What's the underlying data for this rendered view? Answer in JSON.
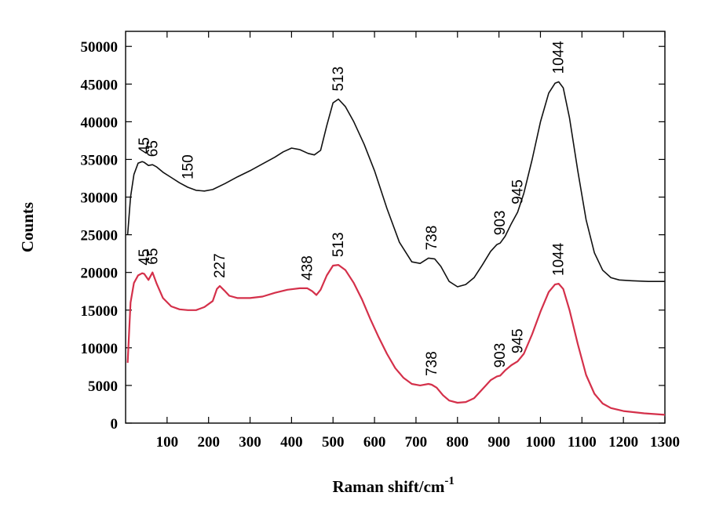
{
  "chart_data": {
    "type": "line",
    "title": "",
    "xlabel": "Raman shift/cm",
    "xlabel_superscript": "-1",
    "ylabel": "Counts",
    "xlim": [
      0,
      1300
    ],
    "ylim": [
      0,
      52000
    ],
    "x_ticks": [
      100,
      200,
      300,
      400,
      500,
      600,
      700,
      800,
      900,
      1000,
      1100,
      1200,
      1300
    ],
    "x_tick_labels": [
      "100",
      "200",
      "300",
      "400",
      "500",
      "600",
      "700",
      "800",
      "900",
      "1000",
      "1100",
      "1200",
      "1300"
    ],
    "y_ticks": [
      0,
      5000,
      10000,
      15000,
      20000,
      25000,
      30000,
      35000,
      40000,
      45000,
      50000
    ],
    "y_tick_labels": [
      "0",
      "5000",
      "10000",
      "15000",
      "20000",
      "25000",
      "30000",
      "35000",
      "40000",
      "45000",
      "50000"
    ],
    "grid": false,
    "legend": "none",
    "series": [
      {
        "color": "#111111",
        "points": [
          [
            5,
            25000
          ],
          [
            12,
            30000
          ],
          [
            20,
            33000
          ],
          [
            30,
            34500
          ],
          [
            40,
            34700
          ],
          [
            45,
            34600
          ],
          [
            55,
            34200
          ],
          [
            65,
            34300
          ],
          [
            75,
            34000
          ],
          [
            90,
            33300
          ],
          [
            110,
            32600
          ],
          [
            130,
            31900
          ],
          [
            150,
            31300
          ],
          [
            170,
            30900
          ],
          [
            190,
            30800
          ],
          [
            210,
            31000
          ],
          [
            240,
            31800
          ],
          [
            270,
            32700
          ],
          [
            300,
            33500
          ],
          [
            330,
            34400
          ],
          [
            360,
            35300
          ],
          [
            380,
            36000
          ],
          [
            400,
            36500
          ],
          [
            420,
            36300
          ],
          [
            440,
            35800
          ],
          [
            455,
            35600
          ],
          [
            470,
            36200
          ],
          [
            485,
            39500
          ],
          [
            500,
            42500
          ],
          [
            513,
            43000
          ],
          [
            530,
            42000
          ],
          [
            550,
            40000
          ],
          [
            575,
            37000
          ],
          [
            600,
            33500
          ],
          [
            630,
            28500
          ],
          [
            660,
            24000
          ],
          [
            690,
            21400
          ],
          [
            710,
            21200
          ],
          [
            730,
            21900
          ],
          [
            745,
            21800
          ],
          [
            760,
            20800
          ],
          [
            780,
            18800
          ],
          [
            800,
            18100
          ],
          [
            820,
            18400
          ],
          [
            840,
            19300
          ],
          [
            860,
            21000
          ],
          [
            880,
            22800
          ],
          [
            895,
            23700
          ],
          [
            903,
            23900
          ],
          [
            915,
            24800
          ],
          [
            930,
            26500
          ],
          [
            945,
            28000
          ],
          [
            960,
            30500
          ],
          [
            980,
            35000
          ],
          [
            1000,
            40000
          ],
          [
            1020,
            43800
          ],
          [
            1035,
            45100
          ],
          [
            1044,
            45300
          ],
          [
            1055,
            44500
          ],
          [
            1070,
            40500
          ],
          [
            1090,
            33500
          ],
          [
            1110,
            27000
          ],
          [
            1130,
            22600
          ],
          [
            1150,
            20300
          ],
          [
            1170,
            19300
          ],
          [
            1190,
            19000
          ],
          [
            1220,
            18900
          ],
          [
            1260,
            18800
          ],
          [
            1300,
            18800
          ]
        ]
      },
      {
        "color": "#d4304a",
        "points": [
          [
            5,
            8000
          ],
          [
            12,
            16000
          ],
          [
            20,
            18600
          ],
          [
            30,
            19600
          ],
          [
            40,
            19900
          ],
          [
            45,
            19800
          ],
          [
            55,
            19000
          ],
          [
            65,
            20000
          ],
          [
            75,
            18500
          ],
          [
            90,
            16600
          ],
          [
            110,
            15500
          ],
          [
            130,
            15100
          ],
          [
            150,
            15000
          ],
          [
            170,
            15000
          ],
          [
            190,
            15400
          ],
          [
            210,
            16200
          ],
          [
            220,
            17800
          ],
          [
            227,
            18200
          ],
          [
            238,
            17600
          ],
          [
            250,
            16900
          ],
          [
            270,
            16600
          ],
          [
            300,
            16600
          ],
          [
            330,
            16800
          ],
          [
            360,
            17300
          ],
          [
            390,
            17700
          ],
          [
            420,
            17900
          ],
          [
            438,
            17900
          ],
          [
            450,
            17500
          ],
          [
            460,
            17000
          ],
          [
            470,
            17700
          ],
          [
            485,
            19600
          ],
          [
            500,
            20900
          ],
          [
            513,
            21000
          ],
          [
            530,
            20300
          ],
          [
            550,
            18600
          ],
          [
            570,
            16400
          ],
          [
            590,
            13800
          ],
          [
            610,
            11400
          ],
          [
            630,
            9200
          ],
          [
            650,
            7300
          ],
          [
            670,
            6000
          ],
          [
            690,
            5200
          ],
          [
            710,
            5000
          ],
          [
            730,
            5200
          ],
          [
            738,
            5100
          ],
          [
            750,
            4700
          ],
          [
            765,
            3700
          ],
          [
            780,
            3000
          ],
          [
            800,
            2700
          ],
          [
            820,
            2800
          ],
          [
            840,
            3300
          ],
          [
            860,
            4500
          ],
          [
            880,
            5700
          ],
          [
            895,
            6200
          ],
          [
            903,
            6300
          ],
          [
            915,
            7000
          ],
          [
            930,
            7700
          ],
          [
            945,
            8200
          ],
          [
            960,
            9200
          ],
          [
            980,
            11800
          ],
          [
            1000,
            14800
          ],
          [
            1020,
            17400
          ],
          [
            1035,
            18400
          ],
          [
            1044,
            18500
          ],
          [
            1055,
            17800
          ],
          [
            1070,
            15000
          ],
          [
            1090,
            10500
          ],
          [
            1110,
            6400
          ],
          [
            1130,
            3900
          ],
          [
            1150,
            2600
          ],
          [
            1170,
            2000
          ],
          [
            1200,
            1600
          ],
          [
            1250,
            1300
          ],
          [
            1300,
            1100
          ]
        ]
      }
    ],
    "annotations": [
      {
        "text": "45",
        "x": 45,
        "y": 34700
      },
      {
        "text": "65",
        "x": 65,
        "y": 34300
      },
      {
        "text": "150",
        "x": 150,
        "y": 31300
      },
      {
        "text": "513",
        "x": 513,
        "y": 43000
      },
      {
        "text": "738",
        "x": 738,
        "y": 21900
      },
      {
        "text": "903",
        "x": 903,
        "y": 23900
      },
      {
        "text": "945",
        "x": 945,
        "y": 28000
      },
      {
        "text": "1044",
        "x": 1044,
        "y": 45300
      },
      {
        "text": "45",
        "x": 45,
        "y": 19900
      },
      {
        "text": "65",
        "x": 65,
        "y": 20000
      },
      {
        "text": "227",
        "x": 227,
        "y": 18200
      },
      {
        "text": "438",
        "x": 438,
        "y": 17900
      },
      {
        "text": "513",
        "x": 513,
        "y": 21000
      },
      {
        "text": "738",
        "x": 738,
        "y": 5200
      },
      {
        "text": "903",
        "x": 903,
        "y": 6300
      },
      {
        "text": "945",
        "x": 945,
        "y": 8200
      },
      {
        "text": "1044",
        "x": 1044,
        "y": 18500
      }
    ]
  }
}
